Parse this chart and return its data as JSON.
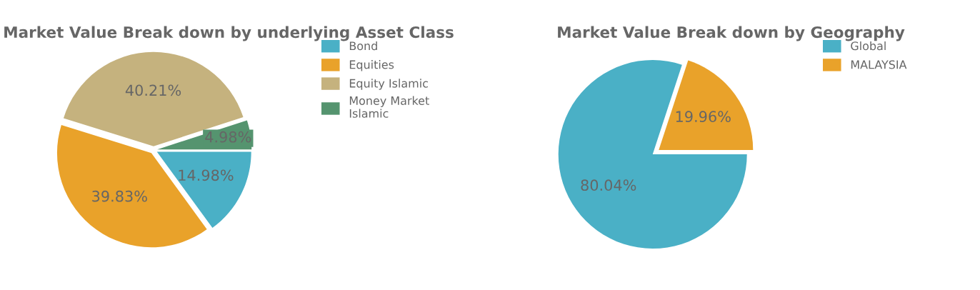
{
  "chart_data": [
    {
      "type": "pie",
      "title": "Market Value Break down by underlying Asset Class",
      "categories": [
        "Bond",
        "Equities",
        "Equity Islamic",
        "Money Market\nIslamic"
      ],
      "values": [
        14.98,
        39.83,
        40.21,
        4.98
      ],
      "value_labels": [
        "14.98%",
        "39.83%",
        "40.21%",
        "4.98%"
      ],
      "colors": [
        "#4ab0c6",
        "#e9a22a",
        "#c5b27e",
        "#55946f"
      ],
      "legend": "right"
    },
    {
      "type": "pie",
      "title": "Market Value Break down by Geography",
      "categories": [
        "Global",
        "MALAYSIA"
      ],
      "values": [
        80.04,
        19.96
      ],
      "value_labels": [
        "80.04%",
        "19.96%"
      ],
      "colors": [
        "#4ab0c6",
        "#e9a22a"
      ],
      "legend": "right"
    }
  ]
}
